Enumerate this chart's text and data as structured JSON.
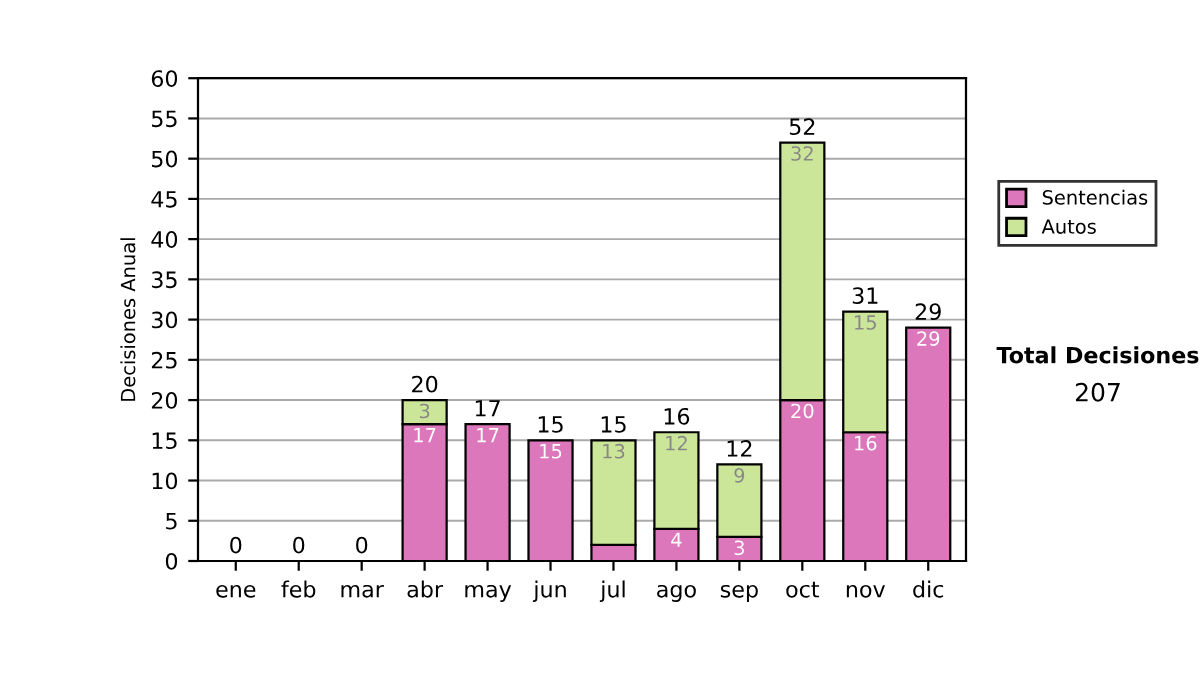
{
  "chart_data": {
    "type": "bar",
    "stacked": true,
    "ylabel": "Decisiones Anual",
    "categories": [
      "ene",
      "feb",
      "mar",
      "abr",
      "may",
      "jun",
      "jul",
      "ago",
      "sep",
      "oct",
      "nov",
      "dic"
    ],
    "series": [
      {
        "name": "Sentencias",
        "color": "#dd77bb",
        "values": [
          0,
          0,
          0,
          17,
          17,
          15,
          2,
          4,
          3,
          20,
          16,
          29
        ],
        "value_labels": [
          null,
          null,
          null,
          "17",
          "17",
          "15",
          null,
          "4",
          "3",
          "20",
          "16",
          "29"
        ]
      },
      {
        "name": "Autos",
        "color": "#cce699",
        "values": [
          0,
          0,
          0,
          3,
          0,
          0,
          13,
          12,
          9,
          32,
          15,
          0
        ],
        "value_labels": [
          null,
          null,
          null,
          "3",
          null,
          null,
          "13",
          "12",
          "9",
          "32",
          "15",
          null
        ]
      }
    ],
    "totals": [
      "0",
      "0",
      "0",
      "20",
      "17",
      "15",
      "15",
      "16",
      "12",
      "52",
      "31",
      "29"
    ],
    "ylim": [
      0,
      60
    ],
    "yticks": [
      0,
      5,
      10,
      15,
      20,
      25,
      30,
      35,
      40,
      45,
      50,
      55,
      60
    ],
    "grid": "y",
    "legend": "right",
    "annotations": [
      "Total Decisiones",
      "207"
    ]
  }
}
